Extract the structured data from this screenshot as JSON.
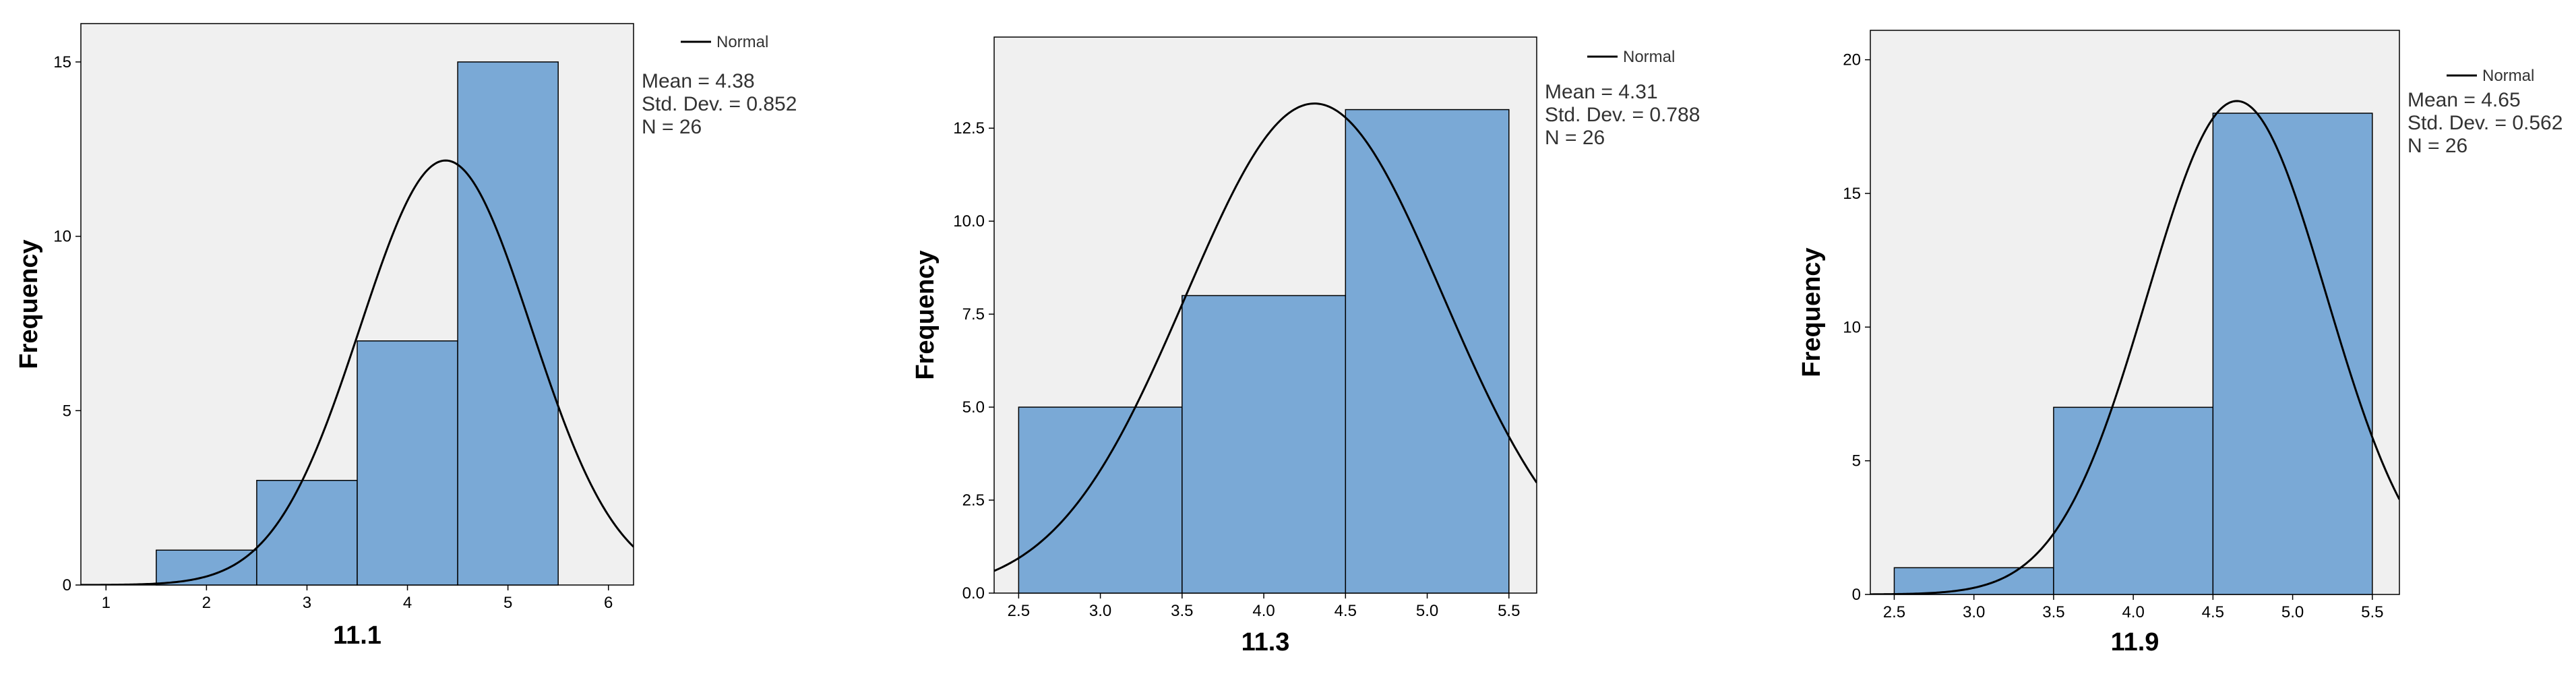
{
  "chart_data": [
    {
      "type": "bar",
      "xlabel": "11.1",
      "ylabel": "Frequency",
      "bins": [
        [
          1.5,
          2.5
        ],
        [
          2.5,
          3.5
        ],
        [
          3.5,
          4.5
        ],
        [
          4.5,
          5.5
        ]
      ],
      "values": [
        1,
        3,
        7,
        15
      ],
      "xlim": [
        0.75,
        6.25
      ],
      "ylim": [
        0,
        16.1
      ],
      "xticks": [
        "1",
        "2",
        "3",
        "4",
        "5",
        "6"
      ],
      "xtick_values": [
        1,
        2,
        3,
        4,
        5,
        6
      ],
      "yticks": [
        "0",
        "5",
        "10",
        "15"
      ],
      "ytick_values": [
        0,
        5,
        10,
        15
      ],
      "normal_curve": {
        "mean": 4.38,
        "sd": 0.852,
        "n": 26,
        "bin_width": 1
      },
      "legend": {
        "line_label": "Normal",
        "placement": "top-right, outside plot"
      },
      "stats": [
        "Mean = 4.38",
        "Std. Dev. = 0.852",
        "N = 26"
      ],
      "bar_color": "#7AA9D6",
      "plot_bg": "#F0F0F0"
    },
    {
      "type": "bar",
      "xlabel": "11.3",
      "ylabel": "Frequency",
      "bins": [
        [
          2.5,
          3.5
        ],
        [
          3.5,
          4.5
        ],
        [
          4.5,
          5.5
        ]
      ],
      "values": [
        5,
        8,
        13
      ],
      "xlim": [
        2.35,
        5.67
      ],
      "ylim": [
        0,
        14.95
      ],
      "xticks": [
        "2.5",
        "3.0",
        "3.5",
        "4.0",
        "4.5",
        "5.0",
        "5.5"
      ],
      "xtick_values": [
        2.5,
        3.0,
        3.5,
        4.0,
        4.5,
        5.0,
        5.5
      ],
      "yticks": [
        "0.0",
        "2.5",
        "5.0",
        "7.5",
        "10.0",
        "12.5"
      ],
      "ytick_values": [
        0,
        2.5,
        5,
        7.5,
        10,
        12.5
      ],
      "normal_curve": {
        "mean": 4.31,
        "sd": 0.788,
        "n": 26,
        "bin_width": 1
      },
      "legend": {
        "line_label": "Normal",
        "placement": "top-right, outside plot"
      },
      "stats": [
        "Mean = 4.31",
        "Std. Dev. = 0.788",
        "N = 26"
      ],
      "bar_color": "#7AA9D6",
      "plot_bg": "#F0F0F0"
    },
    {
      "type": "bar",
      "xlabel": "11.9",
      "ylabel": "Frequency",
      "bins": [
        [
          2.5,
          3.5
        ],
        [
          3.5,
          4.5
        ],
        [
          4.5,
          5.5
        ]
      ],
      "values": [
        1,
        7,
        18
      ],
      "xlim": [
        2.35,
        5.67
      ],
      "ylim": [
        0,
        21.1
      ],
      "xticks": [
        "2.5",
        "3.0",
        "3.5",
        "4.0",
        "4.5",
        "5.0",
        "5.5"
      ],
      "xtick_values": [
        2.5,
        3.0,
        3.5,
        4.0,
        4.5,
        5.0,
        5.5
      ],
      "yticks": [
        "0",
        "5",
        "10",
        "15",
        "20"
      ],
      "ytick_values": [
        0,
        5,
        10,
        15,
        20
      ],
      "normal_curve": {
        "mean": 4.65,
        "sd": 0.562,
        "n": 26,
        "bin_width": 1
      },
      "legend": {
        "line_label": "Normal",
        "placement": "top-right, outside plot"
      },
      "stats": [
        "Mean = 4.65",
        "Std. Dev. = 0.562",
        "N = 26"
      ],
      "bar_color": "#7AA9D6",
      "plot_bg": "#F0F0F0"
    }
  ]
}
